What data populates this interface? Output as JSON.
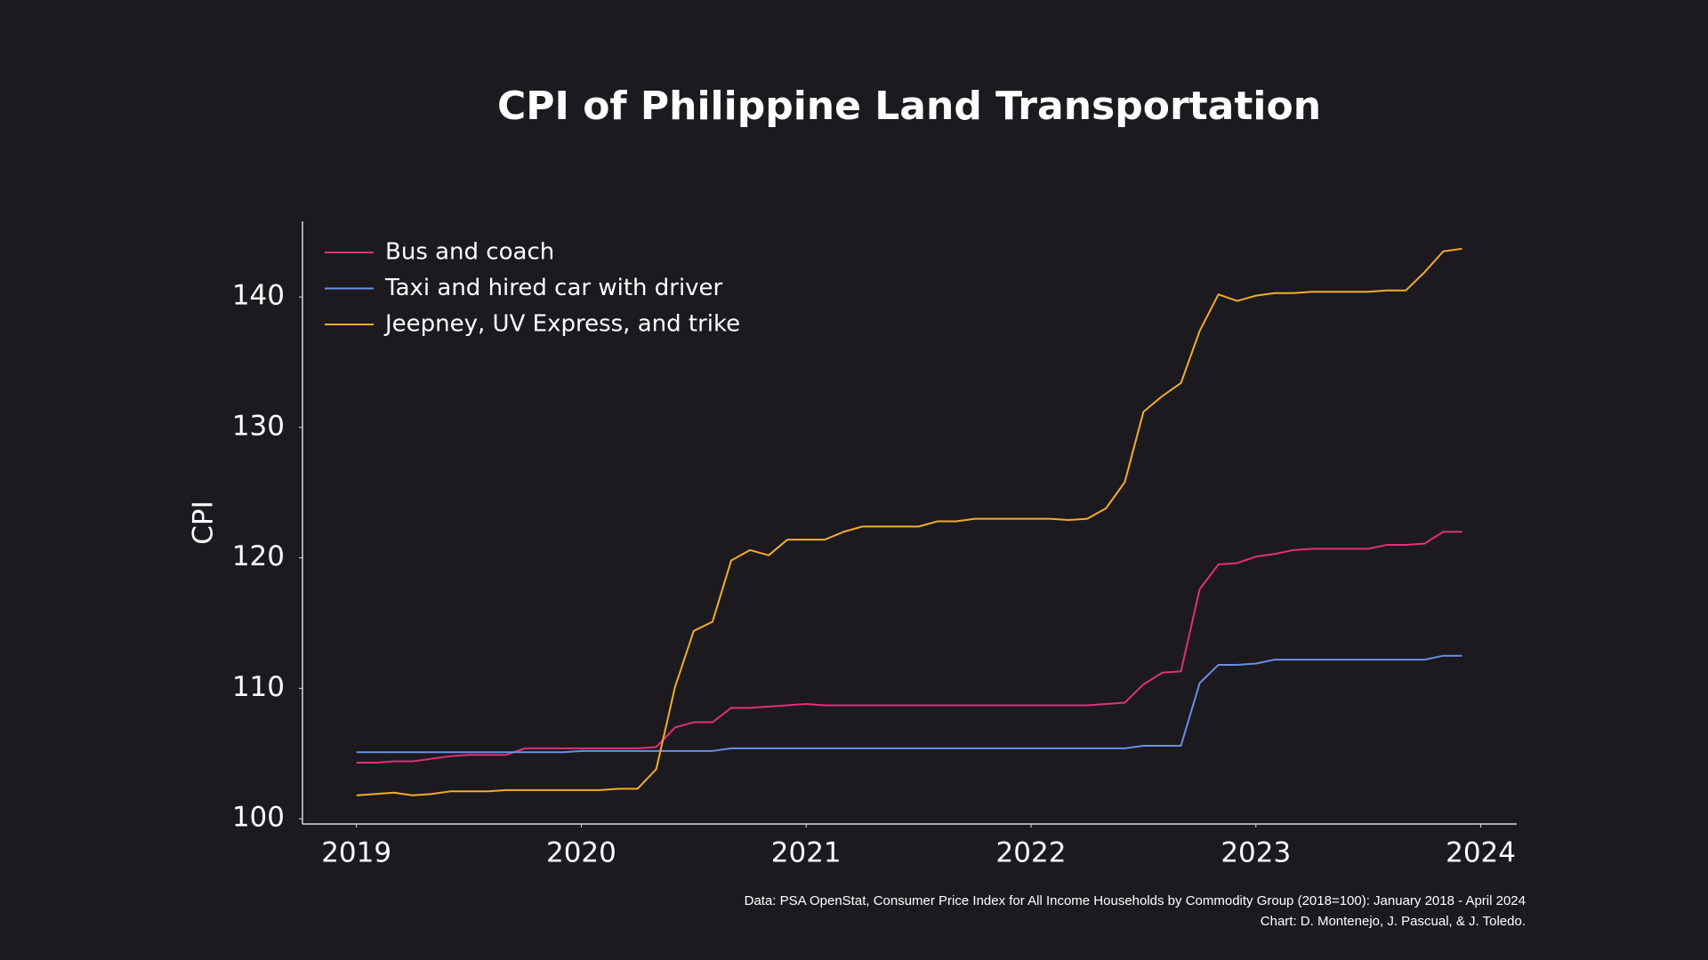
{
  "chart_data": {
    "type": "line",
    "title": "CPI of Philippine Land Transportation",
    "ylabel": "CPI",
    "source": [
      "Data:  PSA OpenStat, Consumer Price Index for All Income Households by Commodity Group (2018=100): January 2018 - April 2024",
      "Chart:  D. Montenejo, J. Pascual, & J. Toledo."
    ],
    "legend": "upper left",
    "grid": false,
    "xlim": [
      2018.76,
      2024.16
    ],
    "xticks": [
      2019,
      2020,
      2021,
      2022,
      2023,
      2024
    ],
    "ylim": [
      99.6,
      145.8
    ],
    "yticks": [
      100,
      110,
      120,
      130,
      140
    ],
    "x": [
      2019,
      2019.0833,
      2019.1667,
      2019.25,
      2019.3333,
      2019.4167,
      2019.5,
      2019.5833,
      2019.6667,
      2019.75,
      2019.8333,
      2019.9167,
      2020,
      2020.0833,
      2020.1667,
      2020.25,
      2020.3333,
      2020.4167,
      2020.5,
      2020.5833,
      2020.6667,
      2020.75,
      2020.8333,
      2020.9167,
      2021,
      2021.0833,
      2021.1667,
      2021.25,
      2021.3333,
      2021.4167,
      2021.5,
      2021.5833,
      2021.6667,
      2021.75,
      2021.8333,
      2021.9167,
      2022,
      2022.0833,
      2022.1667,
      2022.25,
      2022.3333,
      2022.4167,
      2022.5,
      2022.5833,
      2022.6667,
      2022.75,
      2022.8333,
      2022.9167,
      2023,
      2023.0833,
      2023.1667,
      2023.25,
      2023.3333,
      2023.4167,
      2023.5,
      2023.5833,
      2023.6667,
      2023.75,
      2023.8333,
      2023.9167
    ],
    "series": [
      {
        "name": "Bus and coach",
        "color": "#e0307a",
        "values": [
          104.3,
          104.3,
          104.4,
          104.4,
          104.6,
          104.8,
          104.9,
          104.9,
          104.9,
          105.4,
          105.4,
          105.4,
          105.4,
          105.4,
          105.4,
          105.4,
          105.5,
          107.0,
          107.4,
          107.4,
          108.5,
          108.5,
          108.6,
          108.7,
          108.8,
          108.7,
          108.7,
          108.7,
          108.7,
          108.7,
          108.7,
          108.7,
          108.7,
          108.7,
          108.7,
          108.7,
          108.7,
          108.7,
          108.7,
          108.7,
          108.8,
          108.9,
          110.3,
          111.2,
          111.3,
          117.6,
          119.5,
          119.6,
          120.1,
          120.3,
          120.6,
          120.7,
          120.7,
          120.7,
          120.7,
          121.0,
          121.0,
          121.1,
          122.0,
          122.0
        ]
      },
      {
        "name": "Taxi and hired car with driver",
        "color": "#6a8ee8",
        "values": [
          105.1,
          105.1,
          105.1,
          105.1,
          105.1,
          105.1,
          105.1,
          105.1,
          105.1,
          105.1,
          105.1,
          105.1,
          105.2,
          105.2,
          105.2,
          105.2,
          105.2,
          105.2,
          105.2,
          105.2,
          105.4,
          105.4,
          105.4,
          105.4,
          105.4,
          105.4,
          105.4,
          105.4,
          105.4,
          105.4,
          105.4,
          105.4,
          105.4,
          105.4,
          105.4,
          105.4,
          105.4,
          105.4,
          105.4,
          105.4,
          105.4,
          105.4,
          105.6,
          105.6,
          105.6,
          110.4,
          111.8,
          111.8,
          111.9,
          112.2,
          112.2,
          112.2,
          112.2,
          112.2,
          112.2,
          112.2,
          112.2,
          112.2,
          112.5,
          112.5
        ]
      },
      {
        "name": "Jeepney, UV Express, and trike",
        "color": "#f2ac2c",
        "values": [
          101.8,
          101.9,
          102.0,
          101.8,
          101.9,
          102.1,
          102.1,
          102.1,
          102.2,
          102.2,
          102.2,
          102.2,
          102.2,
          102.2,
          102.3,
          102.3,
          103.8,
          110.1,
          114.4,
          115.1,
          119.8,
          120.6,
          120.2,
          121.4,
          121.4,
          121.4,
          122.0,
          122.4,
          122.4,
          122.4,
          122.4,
          122.8,
          122.8,
          123.0,
          123.0,
          123.0,
          123.0,
          123.0,
          122.9,
          123.0,
          123.8,
          125.8,
          131.2,
          132.4,
          133.4,
          137.4,
          140.2,
          139.7,
          140.1,
          140.3,
          140.3,
          140.4,
          140.4,
          140.4,
          140.4,
          140.5,
          140.5,
          141.9,
          143.5,
          143.7
        ]
      }
    ]
  }
}
